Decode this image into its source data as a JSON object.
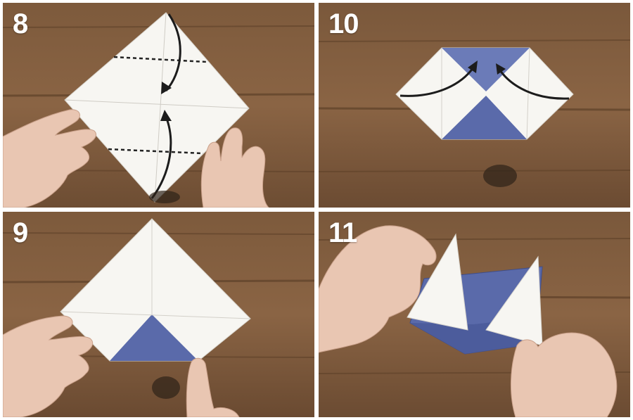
{
  "steps": [
    {
      "number": "8"
    },
    {
      "number": "10"
    },
    {
      "number": "9"
    },
    {
      "number": "11"
    }
  ],
  "colors": {
    "wood_light": "#8a6444",
    "wood_dark": "#5e4129",
    "paper_white": "#f7f6f2",
    "paper_blue": "#5a6aaa",
    "skin": "#e9c6b2",
    "arrow": "#1c1c1c",
    "background": "#ffffff"
  }
}
